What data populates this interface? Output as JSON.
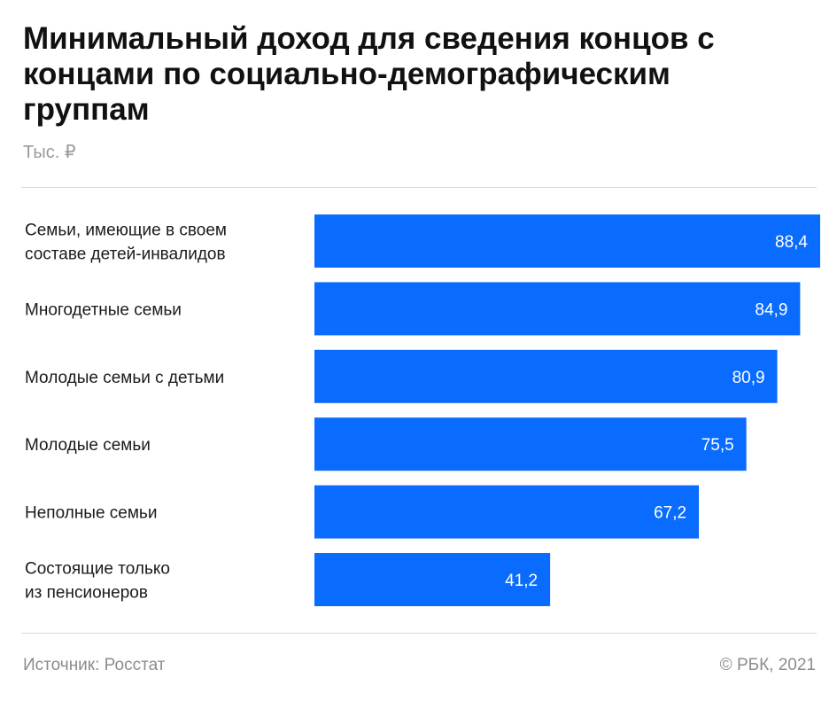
{
  "header": {
    "title": "Минимальный доход для сведения концов с концами по социально-демографическим группам",
    "subtitle": "Тыс. ₽"
  },
  "footer": {
    "source": "Источник: Росстат",
    "copyright": "© РБК, 2021"
  },
  "colors": {
    "bar": "#0a6cff",
    "bar_label": "#ffffff",
    "category_label": "#1a1a1a"
  },
  "chart_data": {
    "type": "bar",
    "orientation": "horizontal",
    "unit": "Тыс. ₽",
    "categories": [
      [
        "Семьи, имеющие в своем",
        "составе детей-инвалидов"
      ],
      [
        "Многодетные семьи"
      ],
      [
        "Молодые семьи с детьми"
      ],
      [
        "Молодые семьи"
      ],
      [
        "Неполные семьи"
      ],
      [
        "Состоящие только",
        "из пенсионеров"
      ]
    ],
    "values": [
      88.4,
      84.9,
      80.9,
      75.5,
      67.2,
      41.2
    ],
    "value_labels": [
      "88,4",
      "84,9",
      "80,9",
      "75,5",
      "67,2",
      "41,2"
    ],
    "xlim": [
      0,
      88.4
    ],
    "grid": false,
    "legend": "none"
  }
}
